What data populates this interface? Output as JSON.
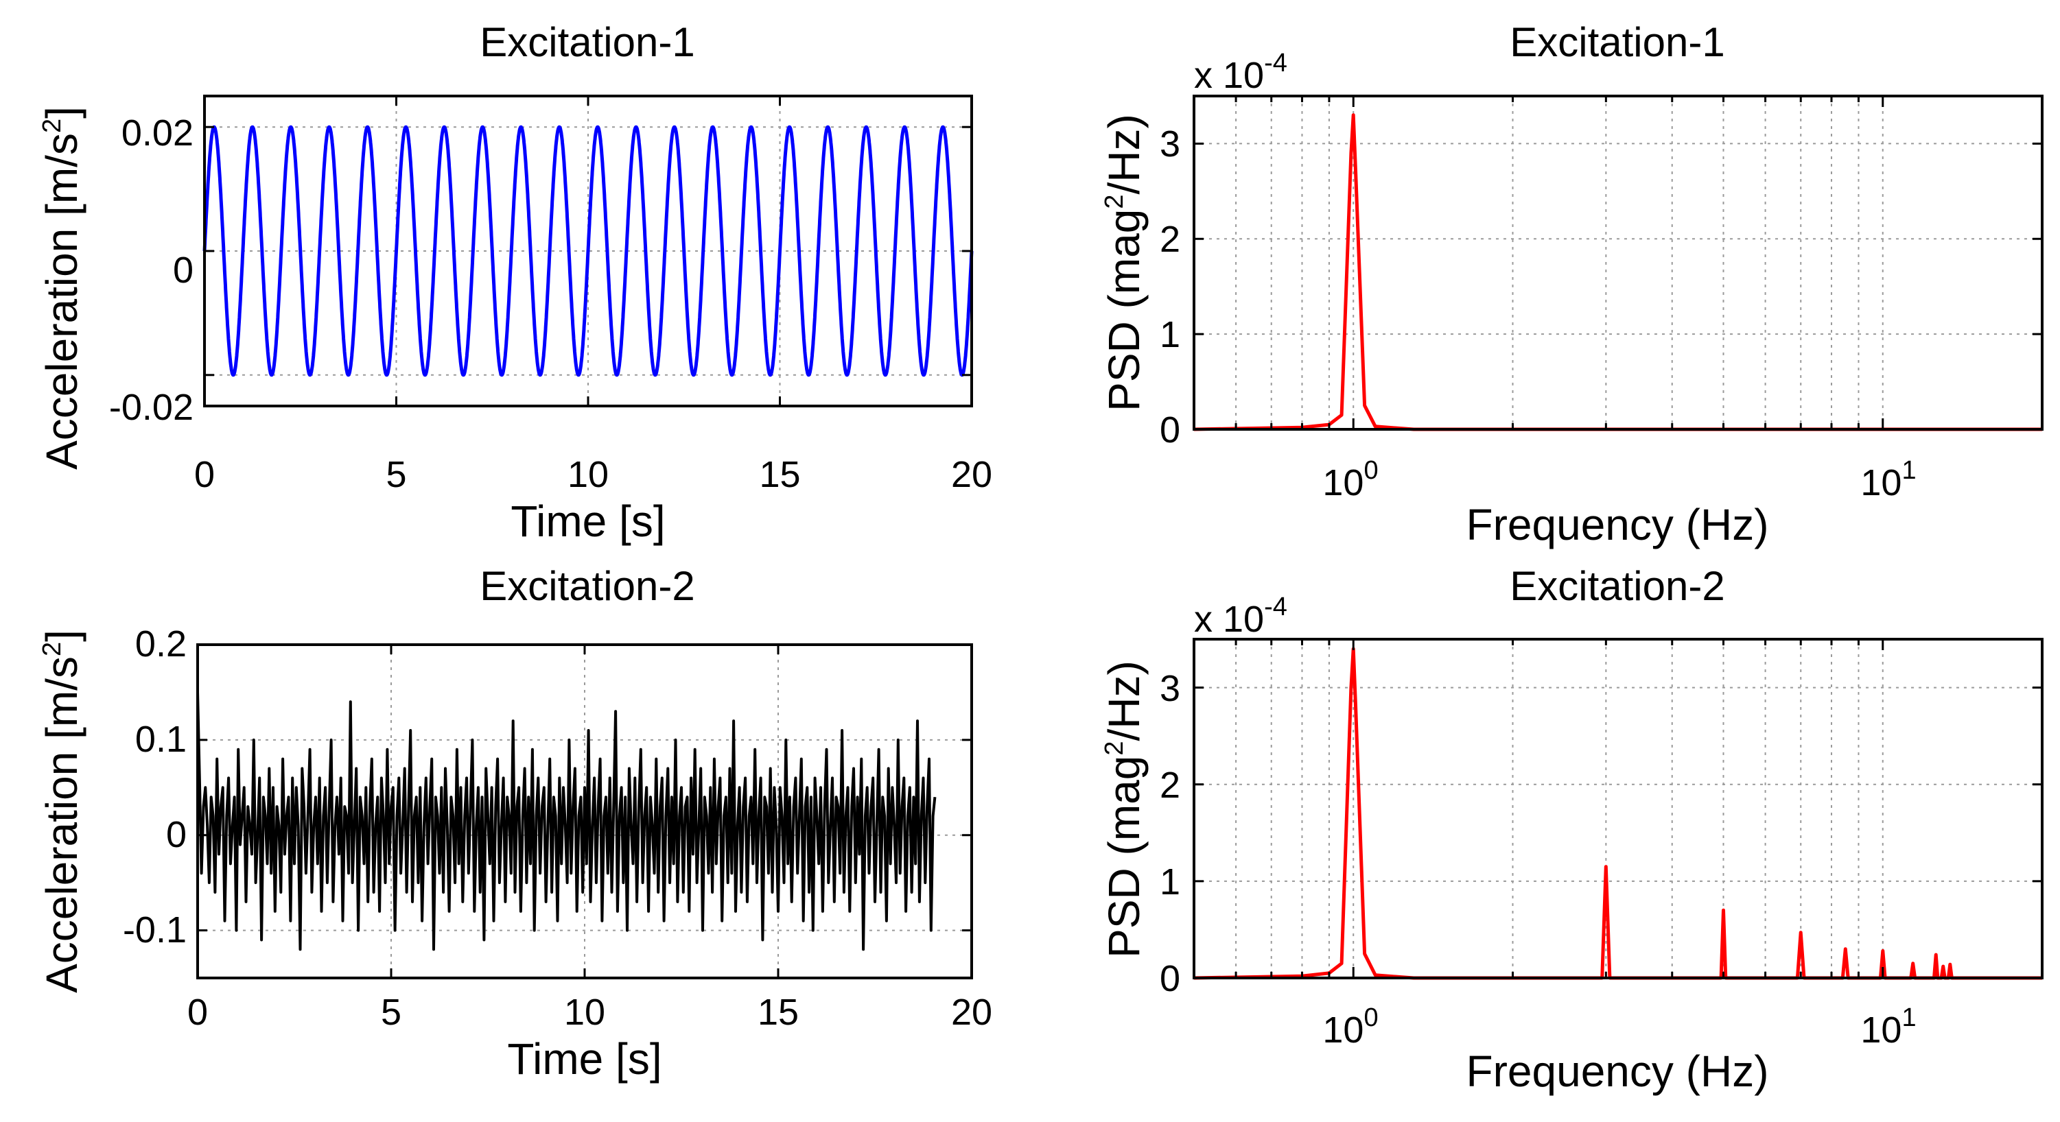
{
  "panels": [
    {
      "id": "p1",
      "title": "Excitation-1",
      "xlabel": "Time [s]",
      "ylabel": "Acceleration [m/s",
      "ylabel_sup": "2",
      "ylabel_end": "]",
      "multiplier": "",
      "x_ticks": [
        "0",
        "5",
        "10",
        "15",
        "20"
      ],
      "y_ticks": [
        "-0.02",
        "0",
        "0.02"
      ],
      "line_color": "#0000ff"
    },
    {
      "id": "p2",
      "title": "Excitation-1",
      "xlabel": "Frequency (Hz)",
      "ylabel": "PSD  (mag",
      "ylabel_sup": "2",
      "ylabel_end": "/Hz)",
      "multiplier": "x 10",
      "multiplier_exp": "-4",
      "x_ticks": [
        "10",
        "10"
      ],
      "x_tick_exps": [
        "0",
        "1"
      ],
      "y_ticks": [
        "0",
        "1",
        "2",
        "3"
      ],
      "line_color": "#ff0000"
    },
    {
      "id": "p3",
      "title": "Excitation-2",
      "xlabel": "Time [s]",
      "ylabel": "Acceleration [m/s",
      "ylabel_sup": "2",
      "ylabel_end": "]",
      "multiplier": "",
      "x_ticks": [
        "0",
        "5",
        "10",
        "15",
        "20"
      ],
      "y_ticks": [
        "-0.1",
        "0",
        "0.1",
        "0.2"
      ],
      "line_color": "#000000"
    },
    {
      "id": "p4",
      "title": "Excitation-2",
      "xlabel": "Frequency (Hz)",
      "ylabel": "PSD  (mag",
      "ylabel_sup": "2",
      "ylabel_end": "/Hz)",
      "multiplier": "x 10",
      "multiplier_exp": "-4",
      "x_ticks": [
        "10",
        "10"
      ],
      "x_tick_exps": [
        "0",
        "1"
      ],
      "y_ticks": [
        "0",
        "1",
        "2",
        "3"
      ],
      "line_color": "#ff0000"
    }
  ],
  "chart_data": [
    {
      "type": "line",
      "title": "Excitation-1",
      "xlabel": "Time [s]",
      "ylabel": "Acceleration [m/s^2]",
      "xlim": [
        0,
        20
      ],
      "ylim": [
        -0.025,
        0.025
      ],
      "x_scale": "linear",
      "grid": true,
      "series": [
        {
          "signal": "sine",
          "amplitude": 0.02,
          "frequency_hz": 1.0,
          "color": "#0000ff"
        }
      ]
    },
    {
      "type": "line",
      "title": "Excitation-1",
      "xlabel": "Frequency (Hz)",
      "ylabel": "PSD (mag^2/Hz)",
      "y_multiplier": "x 10^-4",
      "xlim": [
        0.5,
        20
      ],
      "ylim": [
        0,
        3.5
      ],
      "x_scale": "log",
      "grid": true,
      "series": [
        {
          "color": "#ff0000",
          "x": [
            0.5,
            0.8,
            0.9,
            0.95,
            0.99,
            1.0,
            1.01,
            1.05,
            1.1,
            1.3,
            20
          ],
          "y": [
            0,
            0.02,
            0.05,
            0.15,
            2.9,
            3.3,
            2.7,
            0.25,
            0.03,
            0,
            0
          ]
        }
      ]
    },
    {
      "type": "line",
      "title": "Excitation-2",
      "xlabel": "Time [s]",
      "ylabel": "Acceleration [m/s^2]",
      "xlim": [
        0,
        20
      ],
      "ylim": [
        -0.15,
        0.2
      ],
      "x_scale": "linear",
      "grid": true,
      "series": [
        {
          "signal": "random",
          "color": "#000000",
          "x_step": 0.05,
          "y": [
            0.15,
            0.06,
            -0.04,
            0.03,
            0.05,
            0.01,
            -0.05,
            0.04,
            0.02,
            -0.06,
            0.08,
            -0.02,
            0.03,
            0.05,
            -0.09,
            0.02,
            0.06,
            -0.03,
            0.01,
            0.04,
            -0.1,
            0.09,
            -0.01,
            0.02,
            0.05,
            -0.07,
            0.03,
            0.01,
            -0.02,
            0.1,
            -0.05,
            0.0,
            0.06,
            -0.11,
            0.04,
            0.02,
            -0.03,
            0.07,
            -0.04,
            0.05,
            -0.08,
            0.03,
            0.01,
            -0.06,
            0.08,
            -0.02,
            0.02,
            0.04,
            -0.09,
            0.06,
            -0.03,
            0.05,
            0.01,
            -0.12,
            0.07,
            0.03,
            -0.04,
            0.02,
            0.09,
            -0.06,
            0.01,
            0.04,
            -0.03,
            0.06,
            -0.08,
            0.02,
            0.05,
            -0.05,
            0.03,
            0.1,
            -0.07,
            0.01,
            0.04,
            -0.02,
            0.06,
            -0.09,
            0.03,
            0.02,
            -0.04,
            0.14,
            -0.05,
            0.01,
            0.07,
            -0.1,
            0.04,
            0.02,
            -0.03,
            0.05,
            -0.07,
            0.03,
            0.08,
            -0.06,
            0.01,
            0.04,
            -0.08,
            0.06,
            0.02,
            -0.05,
            0.09,
            -0.03,
            0.03,
            0.05,
            -0.1,
            0.02,
            0.06,
            -0.04,
            0.01,
            0.07,
            -0.06,
            0.03,
            0.11,
            -0.07,
            0.02,
            0.04,
            -0.05,
            0.05,
            -0.09,
            0.01,
            0.06,
            -0.03,
            0.03,
            0.08,
            -0.12,
            0.04,
            0.02,
            -0.04,
            0.05,
            -0.06,
            0.07,
            0.01,
            -0.08,
            0.04,
            0.02,
            -0.05,
            0.09,
            -0.03,
            0.05,
            -0.07,
            0.02,
            0.06,
            -0.04,
            0.03,
            0.1,
            -0.08,
            0.01,
            0.05,
            -0.06,
            0.04,
            -0.11,
            0.07,
            0.02,
            -0.03,
            0.05,
            -0.09,
            0.03,
            0.08,
            -0.05,
            0.01,
            0.06,
            -0.07,
            0.04,
            0.02,
            -0.04,
            0.12,
            -0.06,
            0.03,
            0.05,
            -0.08,
            0.02,
            0.07,
            -0.05,
            0.04,
            -0.03,
            0.09,
            -0.1,
            0.02,
            0.06,
            -0.04,
            0.03,
            0.05,
            -0.07,
            0.01,
            0.08,
            -0.06,
            0.04,
            0.02,
            -0.09,
            0.06,
            -0.03,
            0.05,
            0.01,
            -0.05,
            0.1,
            -0.04,
            0.03,
            0.07,
            -0.08,
            0.02,
            0.04,
            -0.06,
            0.05,
            -0.03,
            0.11,
            -0.07,
            0.01,
            0.06,
            -0.05,
            0.03,
            0.08,
            -0.09,
            0.02,
            0.04,
            -0.04,
            0.06,
            -0.06,
            0.03,
            0.13,
            -0.08,
            0.02,
            0.05,
            -0.05,
            0.04,
            -0.1,
            0.07,
            0.01,
            -0.03,
            0.06,
            -0.07,
            0.03,
            0.09,
            -0.05,
            0.02,
            0.05,
            -0.08,
            0.04,
            0.01,
            -0.04,
            0.08,
            -0.06,
            0.03,
            0.06,
            -0.09,
            0.02,
            0.07,
            -0.05,
            0.04,
            -0.03,
            0.1,
            -0.07,
            0.02,
            0.05,
            -0.06,
            0.03,
            0.04,
            -0.08,
            0.06,
            -0.02,
            0.09,
            -0.05,
            0.01,
            0.07,
            -0.1,
            0.04,
            0.02,
            -0.04,
            0.05,
            -0.06,
            0.08,
            -0.03,
            0.03,
            0.06,
            -0.09,
            0.02,
            0.04,
            -0.05,
            0.07,
            -0.04,
            0.12,
            -0.08,
            0.01,
            0.05,
            -0.06,
            0.03,
            0.06,
            -0.07,
            0.02,
            0.04,
            -0.03,
            0.09,
            -0.05,
            0.02,
            0.06,
            -0.11,
            0.04,
            0.03,
            -0.04,
            0.07,
            -0.06,
            0.05,
            0.01,
            -0.08,
            0.05,
            0.02,
            -0.05,
            0.1,
            -0.03,
            0.04,
            -0.07,
            0.03,
            0.06,
            -0.04,
            0.02,
            0.08,
            -0.09,
            0.03,
            0.05,
            -0.06,
            0.04,
            -0.1,
            0.06,
            0.02,
            -0.03,
            0.05,
            -0.08,
            0.03,
            0.09,
            -0.05,
            0.01,
            0.06,
            -0.07,
            0.04,
            0.03,
            -0.04,
            0.11,
            -0.06,
            0.02,
            0.05,
            -0.08,
            0.03,
            0.07,
            -0.05,
            0.04,
            -0.02,
            0.08,
            -0.12,
            0.02,
            0.05,
            -0.04,
            0.03,
            0.06,
            -0.07,
            0.01,
            0.09,
            -0.06,
            0.04,
            0.02,
            -0.09,
            0.07,
            -0.03,
            0.05,
            0.01,
            -0.05,
            0.1,
            -0.04,
            0.03,
            0.06,
            -0.08,
            0.02,
            0.05,
            -0.06,
            0.04,
            -0.03,
            0.12,
            -0.07,
            0.02,
            0.06,
            -0.05,
            0.03,
            0.08,
            -0.1,
            0.02,
            0.04
          ]
        }
      ]
    },
    {
      "type": "line",
      "title": "Excitation-2",
      "xlabel": "Frequency (Hz)",
      "ylabel": "PSD (mag^2/Hz)",
      "y_multiplier": "x 10^-4",
      "xlim": [
        0.5,
        20
      ],
      "ylim": [
        0,
        3.5
      ],
      "x_scale": "log",
      "grid": true,
      "series": [
        {
          "color": "#ff0000",
          "x": [
            0.5,
            0.8,
            0.9,
            0.95,
            0.99,
            1.0,
            1.01,
            1.05,
            1.1,
            1.3,
            2.95,
            3.0,
            3.05,
            4.95,
            5.0,
            5.05,
            6.9,
            7.0,
            7.1,
            8.4,
            8.5,
            8.6,
            9.9,
            10.0,
            10.1,
            11.3,
            11.4,
            11.5,
            12.5,
            12.6,
            12.7,
            12.9,
            13.0,
            13.1,
            13.3,
            13.4,
            13.5,
            20
          ],
          "y": [
            0,
            0.02,
            0.05,
            0.15,
            3.0,
            3.4,
            2.8,
            0.25,
            0.03,
            0,
            0,
            1.15,
            0,
            0,
            0.7,
            0,
            0,
            0.47,
            0,
            0,
            0.3,
            0,
            0,
            0.28,
            0,
            0,
            0.15,
            0,
            0,
            0.24,
            0,
            0,
            0.12,
            0,
            0,
            0.14,
            0,
            0
          ]
        }
      ]
    }
  ]
}
